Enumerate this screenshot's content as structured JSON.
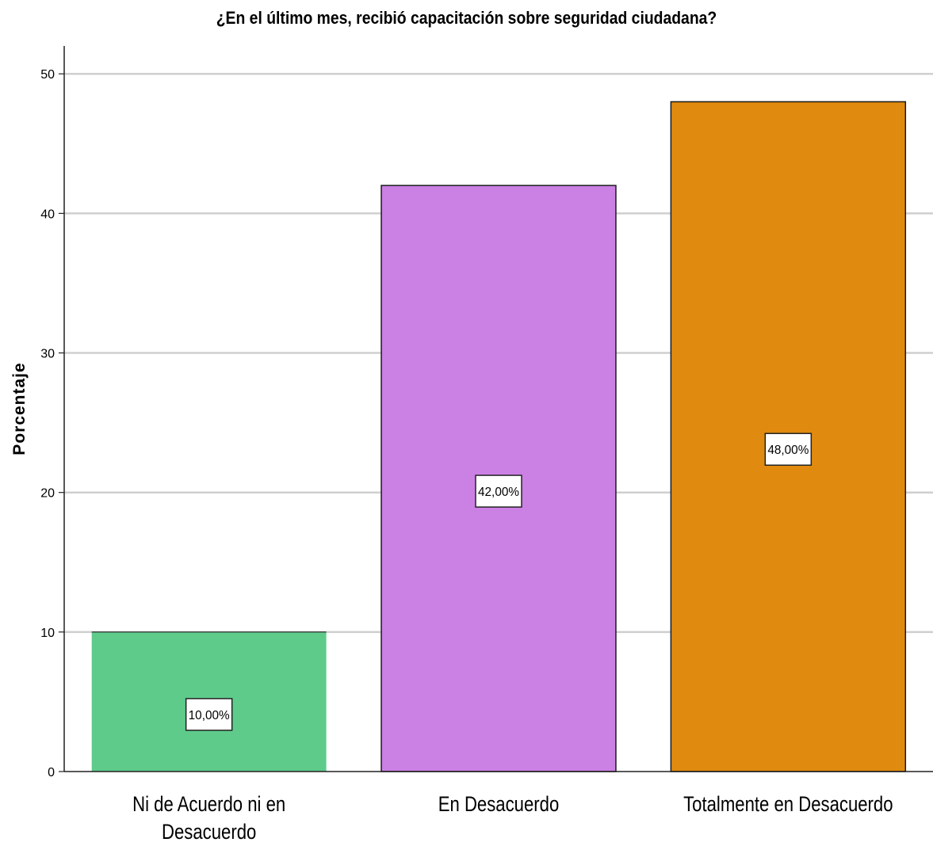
{
  "chart_data": {
    "type": "bar",
    "title": "¿En el último mes, recibió capacitación sobre seguridad ciudadana?",
    "xlabel": "",
    "ylabel": "Porcentaje",
    "categories": [
      "Ni de Acuerdo ni en Desacuerdo",
      "En Desacuerdo",
      "Totalmente en Desacuerdo"
    ],
    "category_lines": [
      [
        "Ni de Acuerdo ni en",
        "Desacuerdo"
      ],
      [
        "En Desacuerdo"
      ],
      [
        "Totalmente en Desacuerdo"
      ]
    ],
    "values": [
      10,
      42,
      48
    ],
    "data_labels": [
      "10,00%",
      "42,00%",
      "48,00%"
    ],
    "colors": [
      "#5ECB8B",
      "#CB80E4",
      "#E08A0F"
    ],
    "ylim": [
      0,
      52
    ],
    "yticks": [
      0,
      10,
      20,
      30,
      40,
      50
    ],
    "grid": true,
    "legend": "none"
  }
}
